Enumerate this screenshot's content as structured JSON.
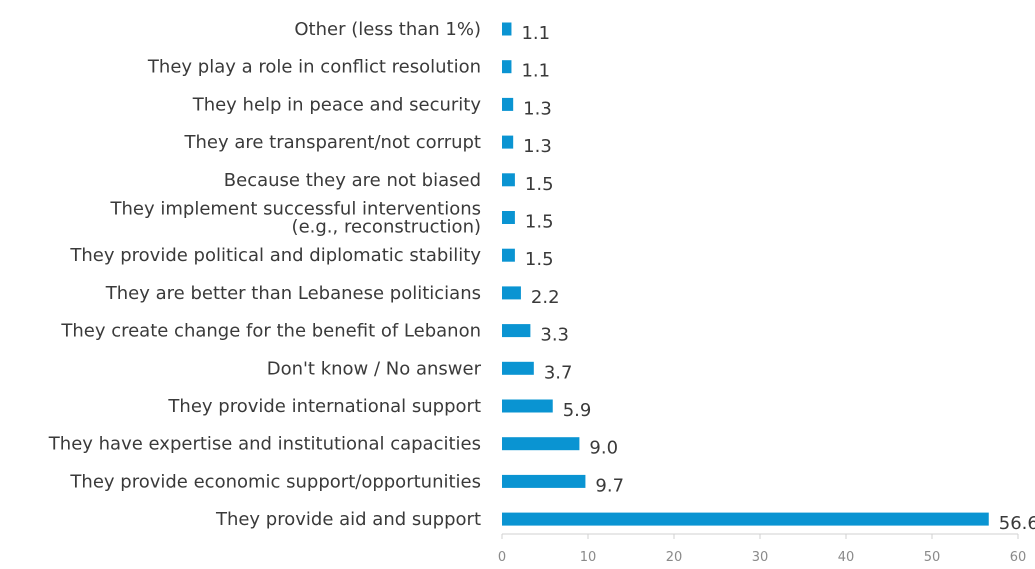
{
  "chart_data": {
    "type": "bar",
    "orientation": "horizontal",
    "categories": [
      [
        "Other (less than 1%)"
      ],
      [
        "They play a role in conflict resolution"
      ],
      [
        "They help in peace and security"
      ],
      [
        "They are transparent/not corrupt"
      ],
      [
        "Because they are not biased"
      ],
      [
        "They implement successful interventions",
        "(e.g., reconstruction)"
      ],
      [
        "They provide political and diplomatic stability"
      ],
      [
        "They are better than Lebanese politicians"
      ],
      [
        "They create change for the benefit of Lebanon"
      ],
      [
        "Don't know / No answer"
      ],
      [
        "They provide international support"
      ],
      [
        "They have expertise and institutional capacities"
      ],
      [
        "They provide economic support/opportunities"
      ],
      [
        "They provide aid and support"
      ]
    ],
    "values": [
      1.1,
      1.1,
      1.3,
      1.3,
      1.5,
      1.5,
      1.5,
      2.2,
      3.3,
      3.7,
      5.9,
      9.0,
      9.7,
      56.6
    ],
    "value_labels": [
      "1.1",
      "1.1",
      "1.3",
      "1.3",
      "1.5",
      "1.5",
      "1.5",
      "2.2",
      "3.3",
      "3.7",
      "5.9",
      "9.0",
      "9.7",
      "56.6"
    ],
    "xlim": [
      0,
      60
    ],
    "xticks": [
      0,
      10,
      20,
      30,
      40,
      50,
      60
    ],
    "bar_color": "#0a94d2",
    "axis_color": "#d0d0d0",
    "grid": false,
    "legend": "none"
  }
}
